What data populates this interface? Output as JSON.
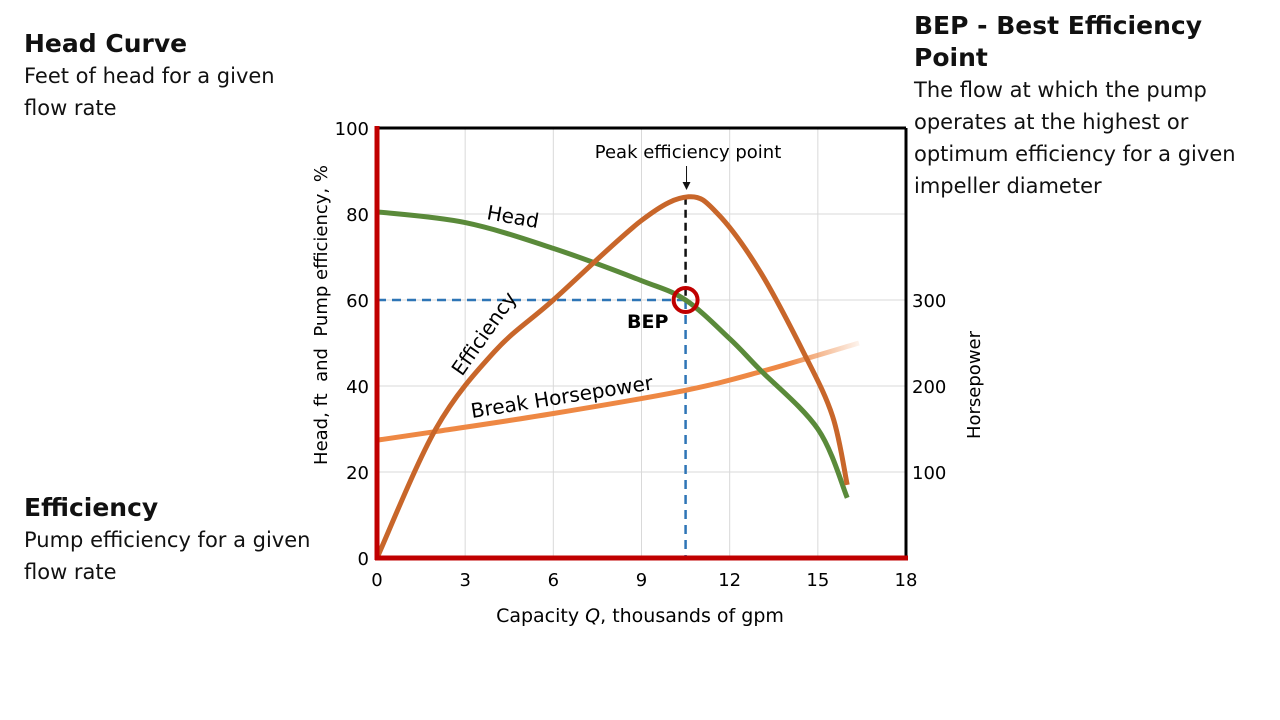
{
  "notes": {
    "head": {
      "title": "Head Curve",
      "body": "Feet of head for a given flow rate"
    },
    "efficiency": {
      "title": "Efficiency",
      "body": "Pump efficiency for a given flow rate"
    },
    "bep": {
      "title": "BEP - Best Efficiency Point",
      "body": "The flow at which the pump operates at the highest or optimum efficiency for a given impeller diameter"
    }
  },
  "chart_data": {
    "type": "line",
    "xlabel_parts": [
      "Capacity ",
      "Q",
      ", thousands of gpm"
    ],
    "ylabel": "Head, ft  and  Pump efficiency, %",
    "y2label": "Horsepower",
    "xlim": [
      0,
      18
    ],
    "ylim": [
      0,
      100
    ],
    "y2lim": [
      0,
      500
    ],
    "xticks": [
      0,
      3,
      6,
      9,
      12,
      15,
      18
    ],
    "yticks": [
      0,
      20,
      40,
      60,
      80,
      100
    ],
    "y2ticks": [
      100,
      200,
      300
    ],
    "grid": true,
    "colors": {
      "head": "#5a8a3a",
      "efficiency": "#c8662a",
      "horsepower": "#ee8844",
      "axis": "#c00000",
      "guide": "#2e75b6",
      "bep_marker": "#c00000"
    },
    "series": [
      {
        "name": "Head",
        "axis": "left",
        "x": [
          0,
          3,
          6,
          9,
          10.5,
          12,
          13,
          15,
          16
        ],
        "y": [
          80.5,
          78,
          72,
          64.5,
          60,
          51,
          44,
          30,
          14
        ]
      },
      {
        "name": "Efficiency",
        "axis": "left",
        "x": [
          0,
          2,
          4,
          6,
          9,
          10.6,
          11.6,
          13,
          14.5,
          15.5,
          16
        ],
        "y": [
          0,
          30,
          48,
          60,
          78.5,
          84,
          80,
          67,
          48,
          33,
          17
        ]
      },
      {
        "name": "Break Horsepower",
        "axis": "right",
        "x": [
          0,
          2,
          6,
          10.5,
          13.2,
          16.4
        ],
        "y": [
          137,
          147,
          168,
          195,
          218,
          250
        ]
      }
    ],
    "annotations": {
      "peak_label": "Peak efficiency point",
      "peak": {
        "x": 10.6,
        "y": 84
      },
      "bep_label": "BEP",
      "bep": {
        "x": 10.5,
        "y": 60
      }
    }
  }
}
